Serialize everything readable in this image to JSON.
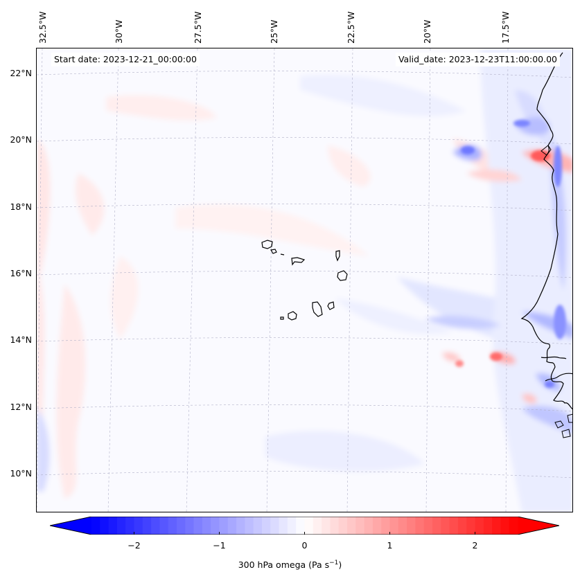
{
  "map": {
    "start_date": "Start date: 2023-12-21_00:00:00",
    "valid_date": "Valid_date: 2023-12-23T11:00:00.00",
    "lon_labels": [
      "32.5°W",
      "30°W",
      "27.5°W",
      "25°W",
      "22.5°W",
      "20°W",
      "17.5°W"
    ],
    "lat_labels": [
      "22°N",
      "20°N",
      "18°N",
      "16°N",
      "14°N",
      "12°N",
      "10°N"
    ],
    "variable": "300 hPa omega",
    "colors": {
      "negative": "#0000ff",
      "zero": "#ffffff",
      "positive": "#ff0000",
      "coast": "#000000",
      "grid": "#b0b0c8"
    }
  },
  "colorbar": {
    "label_main": "300 hPa omega (Pa s",
    "label_exp": "−1",
    "label_close": ")",
    "min": -2.75,
    "max": 2.75,
    "ticks": [
      {
        "value": -2,
        "label": "−2"
      },
      {
        "value": -1,
        "label": "−1"
      },
      {
        "value": 0,
        "label": "0"
      },
      {
        "value": 1,
        "label": "1"
      },
      {
        "value": 2,
        "label": "2"
      }
    ]
  }
}
